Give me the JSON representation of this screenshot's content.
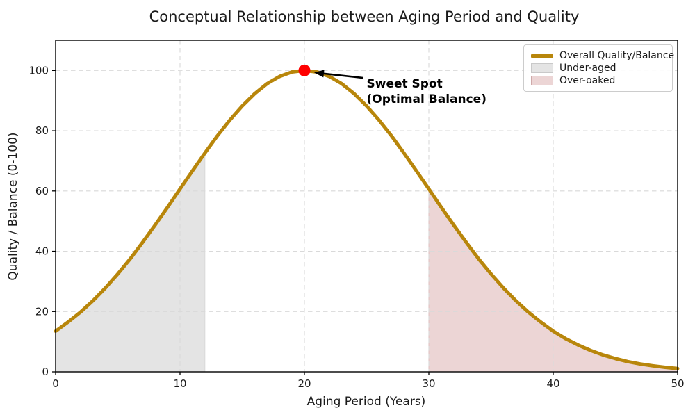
{
  "chart_data": {
    "type": "line",
    "title": "Conceptual Relationship between Aging Period and Quality",
    "xlabel": "Aging Period (Years)",
    "ylabel": "Quality / Balance (0-100)",
    "xlim": [
      0,
      50
    ],
    "ylim": [
      0,
      110
    ],
    "xticks": [
      0,
      10,
      20,
      30,
      40,
      50
    ],
    "yticks": [
      0,
      20,
      40,
      60,
      80,
      100
    ],
    "grid": {
      "on": true,
      "style": "dashed",
      "color": "#d9d9d9"
    },
    "series": [
      {
        "name": "Overall Quality/Balance",
        "color": "#b8860b",
        "line_width": 5,
        "x": [
          0,
          1,
          2,
          3,
          4,
          5,
          6,
          7,
          8,
          9,
          10,
          11,
          12,
          13,
          14,
          15,
          16,
          17,
          18,
          19,
          20,
          21,
          22,
          23,
          24,
          25,
          26,
          27,
          28,
          29,
          30,
          31,
          32,
          33,
          34,
          35,
          36,
          37,
          38,
          39,
          40,
          41,
          42,
          43,
          44,
          45,
          46,
          47,
          48,
          49,
          50
        ],
        "y": [
          13.5,
          16.5,
          19.8,
          23.6,
          27.8,
          32.5,
          37.5,
          43.0,
          48.7,
          54.6,
          60.7,
          66.7,
          72.6,
          78.3,
          83.5,
          88.2,
          92.3,
          95.6,
          98.0,
          99.5,
          100.0,
          99.5,
          98.0,
          95.6,
          92.3,
          88.2,
          83.5,
          78.3,
          72.6,
          66.7,
          60.7,
          54.6,
          48.7,
          43.0,
          37.5,
          32.5,
          27.8,
          23.6,
          19.8,
          16.5,
          13.5,
          11.0,
          8.9,
          7.1,
          5.6,
          4.4,
          3.4,
          2.6,
          2.0,
          1.5,
          1.1
        ]
      }
    ],
    "regions": [
      {
        "name": "Under-aged",
        "x_start": 0,
        "x_end": 12,
        "fill": "#e4e4e4",
        "edge": "#d8d8d8"
      },
      {
        "name": "Over-oaked",
        "x_start": 30,
        "x_end": 50,
        "fill": "#ecd5d5",
        "edge": "#dfc0c0"
      }
    ],
    "annotation": {
      "text": "Sweet Spot\n(Optimal Balance)",
      "point": {
        "x": 20,
        "y": 100
      },
      "text_pos": {
        "x": 25,
        "y": 98
      },
      "dot_color": "#ff0000",
      "dot_radius": 8.5,
      "arrow_color": "#000000"
    },
    "legend": {
      "position": "upper right",
      "items": [
        {
          "label": "Overall Quality/Balance",
          "type": "line",
          "color": "#b8860b",
          "edge": "#b8860b"
        },
        {
          "label": "Under-aged",
          "type": "patch",
          "color": "#e4e4e4",
          "edge": "#c9c9c9"
        },
        {
          "label": "Over-oaked",
          "type": "patch",
          "color": "#ecd5d5",
          "edge": "#cfa9a9"
        }
      ]
    },
    "axis_color": "#000000",
    "text_color": "#1a1a1a"
  }
}
